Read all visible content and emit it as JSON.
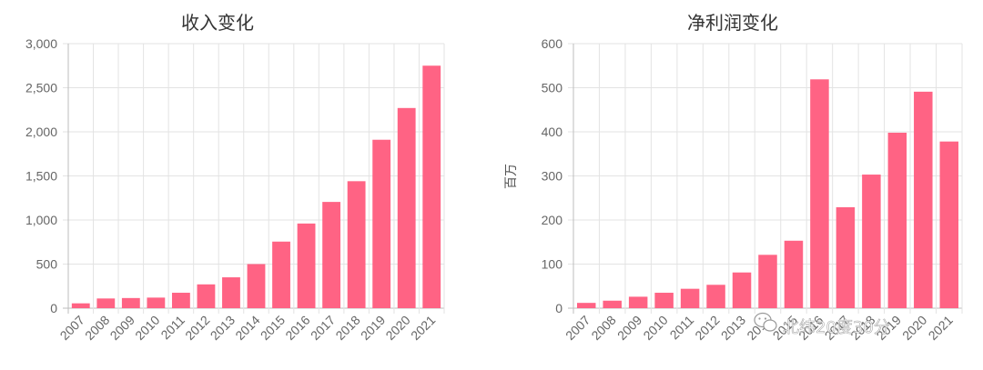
{
  "chart_data": [
    {
      "type": "bar",
      "title": "收入变化",
      "xlabel": "",
      "ylabel": "",
      "categories": [
        "2007",
        "2008",
        "2009",
        "2010",
        "2011",
        "2012",
        "2013",
        "2014",
        "2015",
        "2016",
        "2017",
        "2018",
        "2019",
        "2020",
        "2021"
      ],
      "values": [
        55,
        110,
        115,
        120,
        175,
        270,
        350,
        500,
        755,
        960,
        1205,
        1440,
        1910,
        2270,
        2750
      ],
      "ylim": [
        0,
        3000
      ],
      "yticks": [
        "0",
        "500",
        "1,000",
        "1,500",
        "2,000",
        "2,500",
        "3,000"
      ],
      "bar_color": "#ff6384",
      "grid": true
    },
    {
      "type": "bar",
      "title": "净利润变化",
      "xlabel": "",
      "ylabel": "百万",
      "categories": [
        "2007",
        "2008",
        "2009",
        "2010",
        "2011",
        "2012",
        "2013",
        "2014",
        "2015",
        "2016",
        "2017",
        "2018",
        "2019",
        "2020",
        "2021"
      ],
      "values": [
        12,
        17,
        26,
        35,
        44,
        53,
        81,
        121,
        153,
        519,
        229,
        303,
        398,
        491,
        378
      ],
      "ylim": [
        0,
        600
      ],
      "yticks": [
        "0",
        "100",
        "200",
        "300",
        "400",
        "500",
        "600"
      ],
      "bar_color": "#ff6384",
      "grid": true
    }
  ],
  "watermark": {
    "text": "北纬20度30分",
    "icon": "wechat-icon"
  }
}
